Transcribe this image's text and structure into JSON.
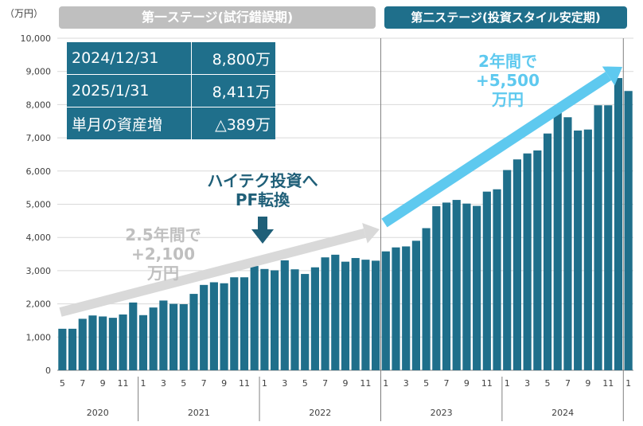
{
  "ylabel_unit": "（万円）",
  "stages": [
    {
      "label": "第一ステージ(試行錯誤期)",
      "color": "#bfbfbf"
    },
    {
      "label": "第二ステージ(投資スタイル安定期)",
      "color": "#1f6f8b"
    }
  ],
  "info_table": [
    {
      "label": "2024/12/31",
      "value": "8,800万"
    },
    {
      "label": "2025/1/31",
      "value": "8,411万"
    },
    {
      "label": "単月の資産増",
      "value": "△389万"
    }
  ],
  "annotations": {
    "stage1_gain": [
      "2.5年間で",
      "+2,100",
      "万円"
    ],
    "stage2_gain": [
      "2年間で",
      "+5,500",
      "万円"
    ],
    "pf_switch": [
      "ハイテク投資へ",
      "PF転換"
    ]
  },
  "chart_data": {
    "type": "bar",
    "bar_color": "#1f6f8b",
    "ylim": [
      0,
      10000
    ],
    "yticks": [
      "0",
      "1,000",
      "2,000",
      "3,000",
      "4,000",
      "5,000",
      "6,000",
      "7,000",
      "8,000",
      "9,000",
      "10,000"
    ],
    "years": [
      "2020",
      "2021",
      "2022",
      "2023",
      "2024"
    ],
    "categories": [
      "2020-05",
      "2020-06",
      "2020-07",
      "2020-08",
      "2020-09",
      "2020-10",
      "2020-11",
      "2020-12",
      "2021-01",
      "2021-02",
      "2021-03",
      "2021-04",
      "2021-05",
      "2021-06",
      "2021-07",
      "2021-08",
      "2021-09",
      "2021-10",
      "2021-11",
      "2021-12",
      "2022-01",
      "2022-02",
      "2022-03",
      "2022-04",
      "2022-05",
      "2022-06",
      "2022-07",
      "2022-08",
      "2022-09",
      "2022-10",
      "2022-11",
      "2022-12",
      "2023-01",
      "2023-02",
      "2023-03",
      "2023-04",
      "2023-05",
      "2023-06",
      "2023-07",
      "2023-08",
      "2023-09",
      "2023-10",
      "2023-11",
      "2023-12",
      "2024-01",
      "2024-02",
      "2024-03",
      "2024-04",
      "2024-05",
      "2024-06",
      "2024-07",
      "2024-08",
      "2024-09",
      "2024-10",
      "2024-11",
      "2024-12",
      "2025-01"
    ],
    "month_labels": [
      "5",
      "",
      "7",
      "",
      "9",
      "",
      "11",
      "",
      "1",
      "",
      "3",
      "",
      "5",
      "",
      "7",
      "",
      "9",
      "",
      "11",
      "",
      "1",
      "",
      "3",
      "",
      "5",
      "",
      "7",
      "",
      "9",
      "",
      "11",
      "",
      "1",
      "",
      "3",
      "",
      "5",
      "",
      "7",
      "",
      "9",
      "",
      "11",
      "",
      "1",
      "",
      "3",
      "",
      "5",
      "",
      "7",
      "",
      "9",
      "",
      "11",
      "",
      "1"
    ],
    "values": [
      1250,
      1250,
      1550,
      1650,
      1620,
      1580,
      1680,
      2040,
      1660,
      1890,
      2100,
      2000,
      1990,
      2300,
      2570,
      2650,
      2620,
      2800,
      2800,
      3140,
      3050,
      3010,
      3310,
      3040,
      2900,
      3100,
      3400,
      3480,
      3270,
      3380,
      3330,
      3300,
      3580,
      3700,
      3730,
      3900,
      4280,
      4940,
      5050,
      5130,
      5020,
      4950,
      5380,
      5450,
      6030,
      6350,
      6530,
      6620,
      7130,
      7900,
      7620,
      7220,
      7250,
      7980,
      7980,
      8800,
      8411
    ]
  }
}
